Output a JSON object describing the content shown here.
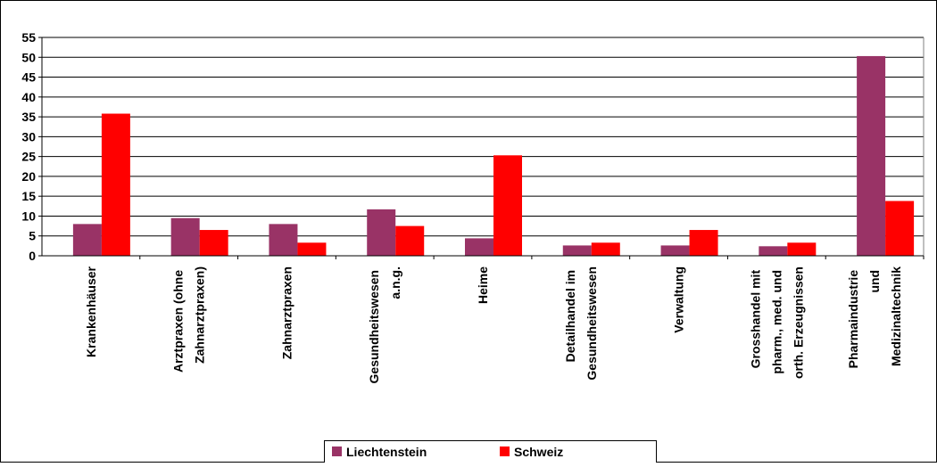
{
  "chart_data": {
    "type": "bar",
    "categories": [
      "Krankenhäuser",
      "Arztpraxen (ohne Zahnarztpraxen)",
      "Zahnarztpraxen",
      "Gesundheitswesen a.n.g.",
      "Heime",
      "Detailhandel im Gesundheitswesen",
      "Verwaltung",
      "Grosshandel mit pharm., med. und orth. Erzeugnissen",
      "Pharmaindustrie und Medizinaltechnik"
    ],
    "series": [
      {
        "name": "Liechtenstein",
        "color": "#993366",
        "values": [
          8,
          9.5,
          8,
          11.7,
          4.4,
          2.6,
          2.6,
          2.4,
          50.3
        ]
      },
      {
        "name": "Schweiz",
        "color": "#ff0000",
        "values": [
          35.8,
          6.5,
          3.3,
          7.5,
          25.3,
          3.3,
          6.5,
          3.3,
          13.8
        ]
      }
    ],
    "ylim": [
      0,
      55
    ],
    "yticks": [
      0,
      5,
      10,
      15,
      20,
      25,
      30,
      35,
      40,
      45,
      50,
      55
    ],
    "grid": true,
    "legend": "bottom"
  }
}
